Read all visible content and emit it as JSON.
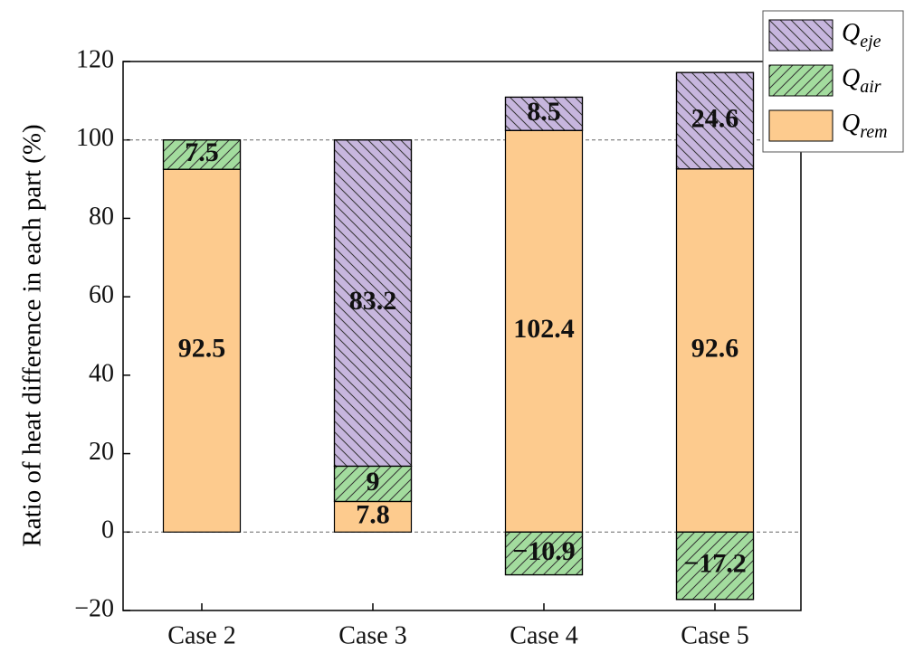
{
  "chart_data": {
    "type": "stacked_bar",
    "y_label": "Ratio of heat difference in each part (%)",
    "categories": [
      "Case 2",
      "Case 3",
      "Case 4",
      "Case 5"
    ],
    "series": [
      {
        "name": "Q_rem",
        "color": "#fdcb8e",
        "values": [
          92.5,
          7.8,
          102.4,
          92.6
        ]
      },
      {
        "name": "Q_air",
        "color": "#a3dc9e",
        "hatch": "forward",
        "values": [
          7.5,
          9,
          -10.9,
          -17.2
        ],
        "value_labels": [
          "7.5",
          "9",
          "−10.9",
          "−17.2"
        ]
      },
      {
        "name": "Q_eje",
        "color": "#c7b6de",
        "hatch": "backward",
        "values": [
          null,
          83.2,
          8.5,
          24.6
        ]
      }
    ],
    "ylim": [
      -20,
      120
    ],
    "yticks": [
      {
        "value": -20,
        "label": "−20"
      },
      0,
      20,
      40,
      60,
      80,
      100,
      120
    ],
    "hlines": [
      0,
      100
    ],
    "legend": "top-right"
  }
}
